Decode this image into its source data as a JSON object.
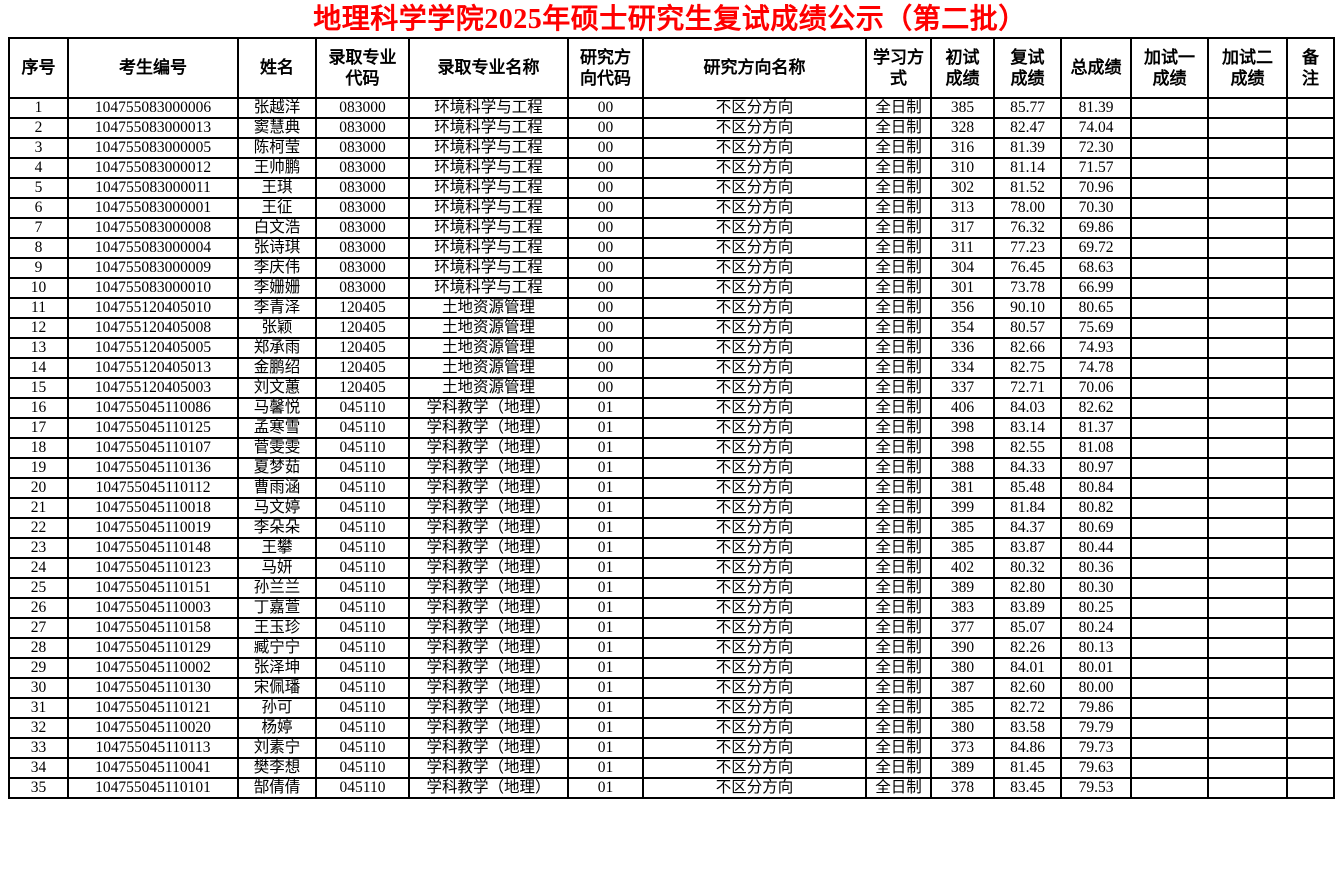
{
  "title": "地理科学学院2025年硕士研究生复试成绩公示（第二批）",
  "title_color": "#ff0000",
  "table": {
    "columns": [
      {
        "key": "no",
        "label": "序号"
      },
      {
        "key": "candidate_id",
        "label": "考生编号"
      },
      {
        "key": "name",
        "label": "姓名"
      },
      {
        "key": "major_code",
        "label": "录取专业\n代码"
      },
      {
        "key": "major_name",
        "label": "录取专业名称"
      },
      {
        "key": "direction_code",
        "label": "研究方\n向代码"
      },
      {
        "key": "direction_name",
        "label": "研究方向名称"
      },
      {
        "key": "study_mode",
        "label": "学习方\n式"
      },
      {
        "key": "initial_score",
        "label": "初试\n成绩"
      },
      {
        "key": "retest_score",
        "label": "复试\n成绩"
      },
      {
        "key": "total_score",
        "label": "总成绩"
      },
      {
        "key": "extra_test1_score",
        "label": "加试一\n成绩"
      },
      {
        "key": "extra_test2_score",
        "label": "加试二\n成绩"
      },
      {
        "key": "remarks",
        "label": "备\n注"
      }
    ],
    "rows": [
      {
        "no": "1",
        "candidate_id": "104755083000006",
        "name": "张越洋",
        "major_code": "083000",
        "major_name": "环境科学与工程",
        "direction_code": "00",
        "direction_name": "不区分方向",
        "study_mode": "全日制",
        "initial_score": "385",
        "retest_score": "85.77",
        "total_score": "81.39",
        "extra_test1_score": "",
        "extra_test2_score": "",
        "remarks": ""
      },
      {
        "no": "2",
        "candidate_id": "104755083000013",
        "name": "窦慧典",
        "major_code": "083000",
        "major_name": "环境科学与工程",
        "direction_code": "00",
        "direction_name": "不区分方向",
        "study_mode": "全日制",
        "initial_score": "328",
        "retest_score": "82.47",
        "total_score": "74.04",
        "extra_test1_score": "",
        "extra_test2_score": "",
        "remarks": ""
      },
      {
        "no": "3",
        "candidate_id": "104755083000005",
        "name": "陈柯莹",
        "major_code": "083000",
        "major_name": "环境科学与工程",
        "direction_code": "00",
        "direction_name": "不区分方向",
        "study_mode": "全日制",
        "initial_score": "316",
        "retest_score": "81.39",
        "total_score": "72.30",
        "extra_test1_score": "",
        "extra_test2_score": "",
        "remarks": ""
      },
      {
        "no": "4",
        "candidate_id": "104755083000012",
        "name": "王帅鹏",
        "major_code": "083000",
        "major_name": "环境科学与工程",
        "direction_code": "00",
        "direction_name": "不区分方向",
        "study_mode": "全日制",
        "initial_score": "310",
        "retest_score": "81.14",
        "total_score": "71.57",
        "extra_test1_score": "",
        "extra_test2_score": "",
        "remarks": ""
      },
      {
        "no": "5",
        "candidate_id": "104755083000011",
        "name": "王琪",
        "major_code": "083000",
        "major_name": "环境科学与工程",
        "direction_code": "00",
        "direction_name": "不区分方向",
        "study_mode": "全日制",
        "initial_score": "302",
        "retest_score": "81.52",
        "total_score": "70.96",
        "extra_test1_score": "",
        "extra_test2_score": "",
        "remarks": ""
      },
      {
        "no": "6",
        "candidate_id": "104755083000001",
        "name": "王征",
        "major_code": "083000",
        "major_name": "环境科学与工程",
        "direction_code": "00",
        "direction_name": "不区分方向",
        "study_mode": "全日制",
        "initial_score": "313",
        "retest_score": "78.00",
        "total_score": "70.30",
        "extra_test1_score": "",
        "extra_test2_score": "",
        "remarks": ""
      },
      {
        "no": "7",
        "candidate_id": "104755083000008",
        "name": "白文浩",
        "major_code": "083000",
        "major_name": "环境科学与工程",
        "direction_code": "00",
        "direction_name": "不区分方向",
        "study_mode": "全日制",
        "initial_score": "317",
        "retest_score": "76.32",
        "total_score": "69.86",
        "extra_test1_score": "",
        "extra_test2_score": "",
        "remarks": ""
      },
      {
        "no": "8",
        "candidate_id": "104755083000004",
        "name": "张诗琪",
        "major_code": "083000",
        "major_name": "环境科学与工程",
        "direction_code": "00",
        "direction_name": "不区分方向",
        "study_mode": "全日制",
        "initial_score": "311",
        "retest_score": "77.23",
        "total_score": "69.72",
        "extra_test1_score": "",
        "extra_test2_score": "",
        "remarks": ""
      },
      {
        "no": "9",
        "candidate_id": "104755083000009",
        "name": "李庆伟",
        "major_code": "083000",
        "major_name": "环境科学与工程",
        "direction_code": "00",
        "direction_name": "不区分方向",
        "study_mode": "全日制",
        "initial_score": "304",
        "retest_score": "76.45",
        "total_score": "68.63",
        "extra_test1_score": "",
        "extra_test2_score": "",
        "remarks": ""
      },
      {
        "no": "10",
        "candidate_id": "104755083000010",
        "name": "李姗姗",
        "major_code": "083000",
        "major_name": "环境科学与工程",
        "direction_code": "00",
        "direction_name": "不区分方向",
        "study_mode": "全日制",
        "initial_score": "301",
        "retest_score": "73.78",
        "total_score": "66.99",
        "extra_test1_score": "",
        "extra_test2_score": "",
        "remarks": ""
      },
      {
        "no": "11",
        "candidate_id": "104755120405010",
        "name": "李青泽",
        "major_code": "120405",
        "major_name": "土地资源管理",
        "direction_code": "00",
        "direction_name": "不区分方向",
        "study_mode": "全日制",
        "initial_score": "356",
        "retest_score": "90.10",
        "total_score": "80.65",
        "extra_test1_score": "",
        "extra_test2_score": "",
        "remarks": ""
      },
      {
        "no": "12",
        "candidate_id": "104755120405008",
        "name": "张颖",
        "major_code": "120405",
        "major_name": "土地资源管理",
        "direction_code": "00",
        "direction_name": "不区分方向",
        "study_mode": "全日制",
        "initial_score": "354",
        "retest_score": "80.57",
        "total_score": "75.69",
        "extra_test1_score": "",
        "extra_test2_score": "",
        "remarks": ""
      },
      {
        "no": "13",
        "candidate_id": "104755120405005",
        "name": "郑承雨",
        "major_code": "120405",
        "major_name": "土地资源管理",
        "direction_code": "00",
        "direction_name": "不区分方向",
        "study_mode": "全日制",
        "initial_score": "336",
        "retest_score": "82.66",
        "total_score": "74.93",
        "extra_test1_score": "",
        "extra_test2_score": "",
        "remarks": ""
      },
      {
        "no": "14",
        "candidate_id": "104755120405013",
        "name": "金鹏绍",
        "major_code": "120405",
        "major_name": "土地资源管理",
        "direction_code": "00",
        "direction_name": "不区分方向",
        "study_mode": "全日制",
        "initial_score": "334",
        "retest_score": "82.75",
        "total_score": "74.78",
        "extra_test1_score": "",
        "extra_test2_score": "",
        "remarks": ""
      },
      {
        "no": "15",
        "candidate_id": "104755120405003",
        "name": "刘文蕙",
        "major_code": "120405",
        "major_name": "土地资源管理",
        "direction_code": "00",
        "direction_name": "不区分方向",
        "study_mode": "全日制",
        "initial_score": "337",
        "retest_score": "72.71",
        "total_score": "70.06",
        "extra_test1_score": "",
        "extra_test2_score": "",
        "remarks": ""
      },
      {
        "no": "16",
        "candidate_id": "104755045110086",
        "name": "马馨悦",
        "major_code": "045110",
        "major_name": "学科教学（地理）",
        "direction_code": "01",
        "direction_name": "不区分方向",
        "study_mode": "全日制",
        "initial_score": "406",
        "retest_score": "84.03",
        "total_score": "82.62",
        "extra_test1_score": "",
        "extra_test2_score": "",
        "remarks": ""
      },
      {
        "no": "17",
        "candidate_id": "104755045110125",
        "name": "孟寒雪",
        "major_code": "045110",
        "major_name": "学科教学（地理）",
        "direction_code": "01",
        "direction_name": "不区分方向",
        "study_mode": "全日制",
        "initial_score": "398",
        "retest_score": "83.14",
        "total_score": "81.37",
        "extra_test1_score": "",
        "extra_test2_score": "",
        "remarks": ""
      },
      {
        "no": "18",
        "candidate_id": "104755045110107",
        "name": "菅雯雯",
        "major_code": "045110",
        "major_name": "学科教学（地理）",
        "direction_code": "01",
        "direction_name": "不区分方向",
        "study_mode": "全日制",
        "initial_score": "398",
        "retest_score": "82.55",
        "total_score": "81.08",
        "extra_test1_score": "",
        "extra_test2_score": "",
        "remarks": ""
      },
      {
        "no": "19",
        "candidate_id": "104755045110136",
        "name": "夏梦茹",
        "major_code": "045110",
        "major_name": "学科教学（地理）",
        "direction_code": "01",
        "direction_name": "不区分方向",
        "study_mode": "全日制",
        "initial_score": "388",
        "retest_score": "84.33",
        "total_score": "80.97",
        "extra_test1_score": "",
        "extra_test2_score": "",
        "remarks": ""
      },
      {
        "no": "20",
        "candidate_id": "104755045110112",
        "name": "曹雨涵",
        "major_code": "045110",
        "major_name": "学科教学（地理）",
        "direction_code": "01",
        "direction_name": "不区分方向",
        "study_mode": "全日制",
        "initial_score": "381",
        "retest_score": "85.48",
        "total_score": "80.84",
        "extra_test1_score": "",
        "extra_test2_score": "",
        "remarks": ""
      },
      {
        "no": "21",
        "candidate_id": "104755045110018",
        "name": "马文婷",
        "major_code": "045110",
        "major_name": "学科教学（地理）",
        "direction_code": "01",
        "direction_name": "不区分方向",
        "study_mode": "全日制",
        "initial_score": "399",
        "retest_score": "81.84",
        "total_score": "80.82",
        "extra_test1_score": "",
        "extra_test2_score": "",
        "remarks": ""
      },
      {
        "no": "22",
        "candidate_id": "104755045110019",
        "name": "李朵朵",
        "major_code": "045110",
        "major_name": "学科教学（地理）",
        "direction_code": "01",
        "direction_name": "不区分方向",
        "study_mode": "全日制",
        "initial_score": "385",
        "retest_score": "84.37",
        "total_score": "80.69",
        "extra_test1_score": "",
        "extra_test2_score": "",
        "remarks": ""
      },
      {
        "no": "23",
        "candidate_id": "104755045110148",
        "name": "王攀",
        "major_code": "045110",
        "major_name": "学科教学（地理）",
        "direction_code": "01",
        "direction_name": "不区分方向",
        "study_mode": "全日制",
        "initial_score": "385",
        "retest_score": "83.87",
        "total_score": "80.44",
        "extra_test1_score": "",
        "extra_test2_score": "",
        "remarks": ""
      },
      {
        "no": "24",
        "candidate_id": "104755045110123",
        "name": "马妍",
        "major_code": "045110",
        "major_name": "学科教学（地理）",
        "direction_code": "01",
        "direction_name": "不区分方向",
        "study_mode": "全日制",
        "initial_score": "402",
        "retest_score": "80.32",
        "total_score": "80.36",
        "extra_test1_score": "",
        "extra_test2_score": "",
        "remarks": ""
      },
      {
        "no": "25",
        "candidate_id": "104755045110151",
        "name": "孙兰兰",
        "major_code": "045110",
        "major_name": "学科教学（地理）",
        "direction_code": "01",
        "direction_name": "不区分方向",
        "study_mode": "全日制",
        "initial_score": "389",
        "retest_score": "82.80",
        "total_score": "80.30",
        "extra_test1_score": "",
        "extra_test2_score": "",
        "remarks": ""
      },
      {
        "no": "26",
        "candidate_id": "104755045110003",
        "name": "丁嘉萱",
        "major_code": "045110",
        "major_name": "学科教学（地理）",
        "direction_code": "01",
        "direction_name": "不区分方向",
        "study_mode": "全日制",
        "initial_score": "383",
        "retest_score": "83.89",
        "total_score": "80.25",
        "extra_test1_score": "",
        "extra_test2_score": "",
        "remarks": ""
      },
      {
        "no": "27",
        "candidate_id": "104755045110158",
        "name": "王玉珍",
        "major_code": "045110",
        "major_name": "学科教学（地理）",
        "direction_code": "01",
        "direction_name": "不区分方向",
        "study_mode": "全日制",
        "initial_score": "377",
        "retest_score": "85.07",
        "total_score": "80.24",
        "extra_test1_score": "",
        "extra_test2_score": "",
        "remarks": ""
      },
      {
        "no": "28",
        "candidate_id": "104755045110129",
        "name": "臧宁宁",
        "major_code": "045110",
        "major_name": "学科教学（地理）",
        "direction_code": "01",
        "direction_name": "不区分方向",
        "study_mode": "全日制",
        "initial_score": "390",
        "retest_score": "82.26",
        "total_score": "80.13",
        "extra_test1_score": "",
        "extra_test2_score": "",
        "remarks": ""
      },
      {
        "no": "29",
        "candidate_id": "104755045110002",
        "name": "张泽坤",
        "major_code": "045110",
        "major_name": "学科教学（地理）",
        "direction_code": "01",
        "direction_name": "不区分方向",
        "study_mode": "全日制",
        "initial_score": "380",
        "retest_score": "84.01",
        "total_score": "80.01",
        "extra_test1_score": "",
        "extra_test2_score": "",
        "remarks": ""
      },
      {
        "no": "30",
        "candidate_id": "104755045110130",
        "name": "宋佩璠",
        "major_code": "045110",
        "major_name": "学科教学（地理）",
        "direction_code": "01",
        "direction_name": "不区分方向",
        "study_mode": "全日制",
        "initial_score": "387",
        "retest_score": "82.60",
        "total_score": "80.00",
        "extra_test1_score": "",
        "extra_test2_score": "",
        "remarks": ""
      },
      {
        "no": "31",
        "candidate_id": "104755045110121",
        "name": "孙可",
        "major_code": "045110",
        "major_name": "学科教学（地理）",
        "direction_code": "01",
        "direction_name": "不区分方向",
        "study_mode": "全日制",
        "initial_score": "385",
        "retest_score": "82.72",
        "total_score": "79.86",
        "extra_test1_score": "",
        "extra_test2_score": "",
        "remarks": ""
      },
      {
        "no": "32",
        "candidate_id": "104755045110020",
        "name": "杨婷",
        "major_code": "045110",
        "major_name": "学科教学（地理）",
        "direction_code": "01",
        "direction_name": "不区分方向",
        "study_mode": "全日制",
        "initial_score": "380",
        "retest_score": "83.58",
        "total_score": "79.79",
        "extra_test1_score": "",
        "extra_test2_score": "",
        "remarks": ""
      },
      {
        "no": "33",
        "candidate_id": "104755045110113",
        "name": "刘素宁",
        "major_code": "045110",
        "major_name": "学科教学（地理）",
        "direction_code": "01",
        "direction_name": "不区分方向",
        "study_mode": "全日制",
        "initial_score": "373",
        "retest_score": "84.86",
        "total_score": "79.73",
        "extra_test1_score": "",
        "extra_test2_score": "",
        "remarks": ""
      },
      {
        "no": "34",
        "candidate_id": "104755045110041",
        "name": "樊李想",
        "major_code": "045110",
        "major_name": "学科教学（地理）",
        "direction_code": "01",
        "direction_name": "不区分方向",
        "study_mode": "全日制",
        "initial_score": "389",
        "retest_score": "81.45",
        "total_score": "79.63",
        "extra_test1_score": "",
        "extra_test2_score": "",
        "remarks": ""
      },
      {
        "no": "35",
        "candidate_id": "104755045110101",
        "name": "郜倩倩",
        "major_code": "045110",
        "major_name": "学科教学（地理）",
        "direction_code": "01",
        "direction_name": "不区分方向",
        "study_mode": "全日制",
        "initial_score": "378",
        "retest_score": "83.45",
        "total_score": "79.53",
        "extra_test1_score": "",
        "extra_test2_score": "",
        "remarks": ""
      }
    ]
  }
}
